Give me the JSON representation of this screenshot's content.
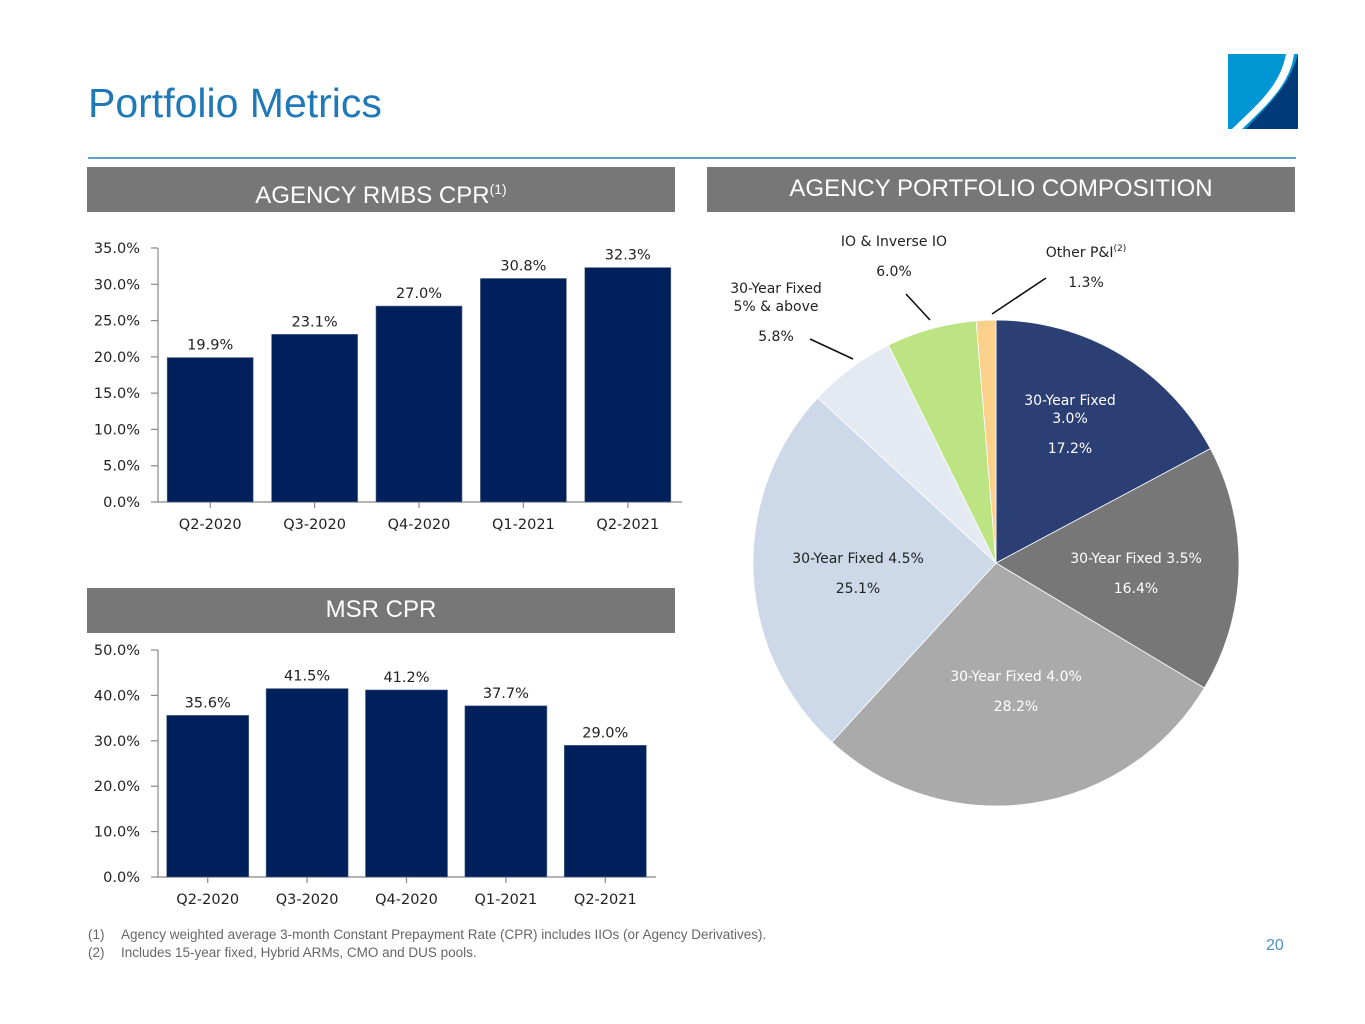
{
  "page": {
    "title": "Portfolio Metrics",
    "page_number": "20",
    "brand_colors": {
      "title": "#1f78b8",
      "header_bar": "#777777",
      "bar": "#00205b",
      "logo_light": "#0096d6",
      "logo_dark": "#003a78"
    }
  },
  "headers": {
    "rmbs_cpr": {
      "text": "AGENCY RMBS CPR",
      "sup": "(1)"
    },
    "composition": {
      "text": "AGENCY PORTFOLIO COMPOSITION"
    },
    "msr_cpr": {
      "text": "MSR CPR"
    }
  },
  "footnotes": [
    {
      "num": "(1)",
      "text": "Agency weighted average 3-month Constant Prepayment Rate (CPR) includes IIOs (or Agency Derivatives)."
    },
    {
      "num": "(2)",
      "text": "Includes 15-year fixed, Hybrid ARMs, CMO and DUS pools."
    }
  ],
  "chart_data": [
    {
      "id": "rmbs",
      "type": "bar",
      "title": "AGENCY RMBS CPR",
      "categories": [
        "Q2-2020",
        "Q3-2020",
        "Q4-2020",
        "Q1-2021",
        "Q2-2021"
      ],
      "values": [
        19.9,
        23.1,
        27.0,
        30.8,
        32.3
      ],
      "data_labels": [
        "19.9%",
        "23.1%",
        "27.0%",
        "30.8%",
        "32.3%"
      ],
      "ylim": [
        0,
        35
      ],
      "yticks": [
        0,
        5,
        10,
        15,
        20,
        25,
        30,
        35
      ],
      "ytick_labels": [
        "0.0%",
        "5.0%",
        "10.0%",
        "15.0%",
        "20.0%",
        "25.0%",
        "30.0%",
        "35.0%"
      ],
      "xlabel": "",
      "ylabel": "",
      "grid": false,
      "color": "#00205b"
    },
    {
      "id": "msr",
      "type": "bar",
      "title": "MSR CPR",
      "categories": [
        "Q2-2020",
        "Q3-2020",
        "Q4-2020",
        "Q1-2021",
        "Q2-2021"
      ],
      "values": [
        35.6,
        41.5,
        41.2,
        37.7,
        29.0
      ],
      "data_labels": [
        "35.6%",
        "41.5%",
        "41.2%",
        "37.7%",
        "29.0%"
      ],
      "ylim": [
        0,
        50
      ],
      "yticks": [
        0,
        10,
        20,
        30,
        40,
        50
      ],
      "ytick_labels": [
        "0.0%",
        "10.0%",
        "20.0%",
        "30.0%",
        "40.0%",
        "50.0%"
      ],
      "xlabel": "",
      "ylabel": "",
      "grid": false,
      "color": "#00205b"
    },
    {
      "id": "composition",
      "type": "pie",
      "title": "AGENCY PORTFOLIO COMPOSITION",
      "start": "12 o'clock, clockwise",
      "slices": [
        {
          "label": [
            "30-Year Fixed",
            "3.0%"
          ],
          "value": 17.2,
          "value_label": "17.2%",
          "color": "#2b3f75",
          "text_color": "#ffffff",
          "label_position": "inside"
        },
        {
          "label": [
            "30-Year Fixed 3.5%"
          ],
          "value": 16.4,
          "value_label": "16.4%",
          "color": "#777777",
          "text_color": "#ffffff",
          "label_position": "inside"
        },
        {
          "label": [
            "30-Year Fixed 4.0%"
          ],
          "value": 28.2,
          "value_label": "28.2%",
          "color": "#aaaaaa",
          "text_color": "#ffffff",
          "label_position": "inside"
        },
        {
          "label": [
            "30-Year Fixed 4.5%"
          ],
          "value": 25.1,
          "value_label": "25.1%",
          "color": "#cdd9e8",
          "text_color": "#222222",
          "label_position": "inside"
        },
        {
          "label": [
            "30-Year Fixed",
            "5% & above"
          ],
          "value": 5.8,
          "value_label": "5.8%",
          "color": "#e5eaf2",
          "text_color": "#222222",
          "label_position": "outside"
        },
        {
          "label": [
            "IO & Inverse IO"
          ],
          "value": 6.0,
          "value_label": "6.0%",
          "color": "#bde482",
          "text_color": "#222222",
          "label_position": "outside"
        },
        {
          "label": [
            "Other P&I"
          ],
          "label_sup": "(2)",
          "value": 1.3,
          "value_label": "1.3%",
          "color": "#fbd08a",
          "text_color": "#222222",
          "label_position": "outside"
        }
      ]
    }
  ]
}
